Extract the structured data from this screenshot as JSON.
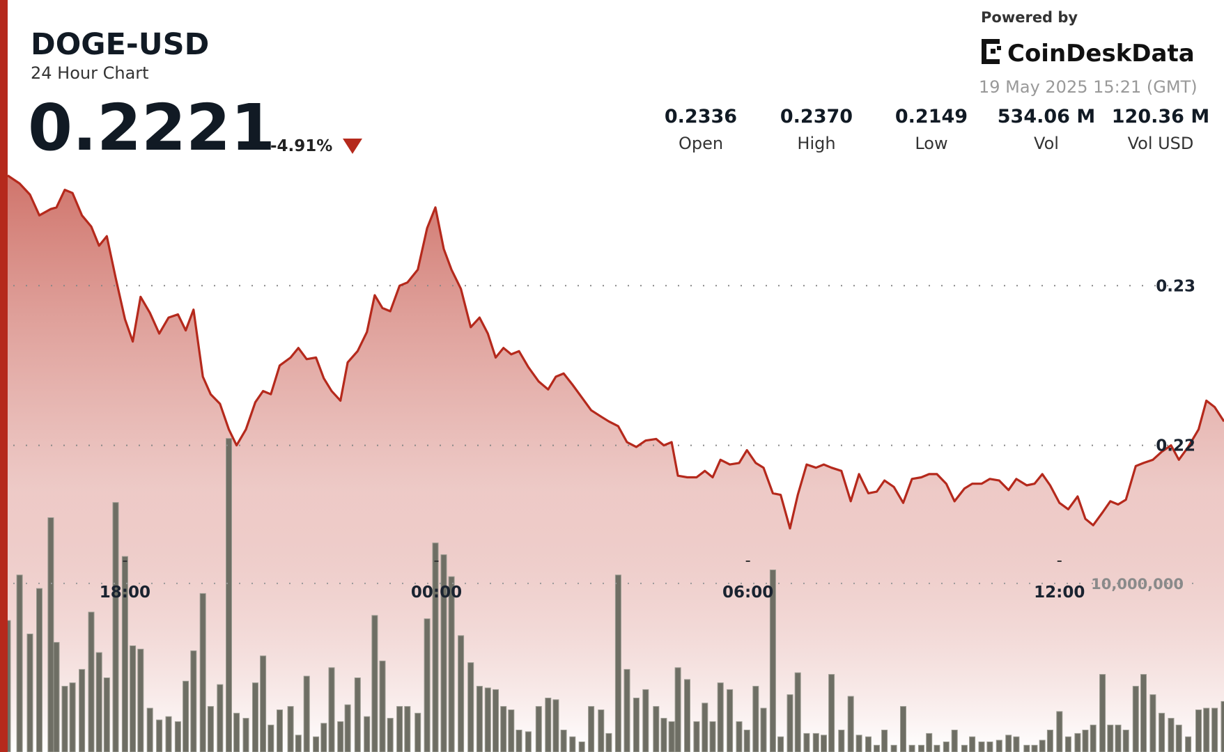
{
  "header": {
    "symbol": "DOGE-USD",
    "subtitle": "24 Hour Chart",
    "price": "0.2221",
    "change": "-4.91%"
  },
  "stats": [
    {
      "value": "0.2336",
      "label": "Open"
    },
    {
      "value": "0.2370",
      "label": "High"
    },
    {
      "value": "0.2149",
      "label": "Low"
    },
    {
      "value": "534.06 M",
      "label": "Vol"
    },
    {
      "value": "120.36 M",
      "label": "Vol USD"
    }
  ],
  "brand": {
    "powered": "Powered by",
    "name": "CoinDeskData",
    "timestamp": "19 May 2025 15:21 (GMT)"
  },
  "chart_data": {
    "type": "combo",
    "x": [
      15.74,
      15.97,
      16.17,
      16.35,
      16.57,
      16.68,
      16.84,
      16.99,
      17.17,
      17.35,
      17.5,
      17.65,
      17.82,
      18,
      18.15,
      18.3,
      18.48,
      18.66,
      18.84,
      19.02,
      19.17,
      19.32,
      19.5,
      19.65,
      19.83,
      20,
      20.15,
      20.33,
      20.51,
      20.66,
      20.81,
      20.98,
      21.19,
      21.34,
      21.5,
      21.68,
      21.83,
      21.98,
      22.15,
      22.29,
      22.48,
      22.66,
      22.81,
      22.96,
      23.11,
      23.29,
      23.44,
      23.64,
      23.82,
      23.98,
      24.14,
      24.29,
      24.47,
      24.66,
      24.83,
      24.99,
      25.14,
      25.29,
      25.44,
      25.59,
      25.77,
      25.97,
      26.15,
      26.3,
      26.45,
      26.62,
      26.8,
      26.98,
      27.17,
      27.32,
      27.5,
      27.67,
      27.85,
      28.03,
      28.23,
      28.38,
      28.53,
      28.65,
      28.83,
      29.01,
      29.17,
      29.32,
      29.47,
      29.65,
      29.83,
      29.98,
      30.15,
      30.3,
      30.48,
      30.63,
      30.81,
      30.96,
      31.13,
      31.31,
      31.46,
      31.61,
      31.8,
      31.98,
      32.14,
      32.32,
      32.48,
      32.63,
      32.81,
      32.99,
      33.16,
      33.34,
      33.49,
      33.64,
      33.82,
      33.98,
      34.17,
      34.32,
      34.5,
      34.66,
      34.84,
      35.02,
      35.17,
      35.37,
      35.52,
      35.67,
      35.82,
      36,
      36.17,
      36.35,
      36.5,
      36.65,
      36.83,
      36.98,
      37.13,
      37.28,
      37.47,
      37.62,
      37.8,
      37.97,
      38.15,
      38.3,
      38.48,
      38.68,
      38.83,
      38.99,
      39.17
    ],
    "series": [
      {
        "type": "area",
        "color": "#b5291c",
        "values": [
          0.2369,
          0.2364,
          0.2357,
          0.2344,
          0.2348,
          0.2349,
          0.236,
          0.2358,
          0.2344,
          0.2337,
          0.2325,
          0.2331,
          0.2305,
          0.2279,
          0.2265,
          0.2293,
          0.2283,
          0.227,
          0.228,
          0.2282,
          0.2272,
          0.2285,
          0.2243,
          0.2232,
          0.2226,
          0.221,
          0.22,
          0.221,
          0.2227,
          0.2234,
          0.2232,
          0.225,
          0.2255,
          0.2261,
          0.2254,
          0.2255,
          0.2242,
          0.2234,
          0.2228,
          0.2252,
          0.2259,
          0.2271,
          0.2294,
          0.2286,
          0.2284,
          0.23,
          0.2302,
          0.231,
          0.2336,
          0.2349,
          0.2323,
          0.231,
          0.2298,
          0.2274,
          0.228,
          0.227,
          0.2255,
          0.2261,
          0.2257,
          0.2259,
          0.2249,
          0.224,
          0.2235,
          0.2243,
          0.2245,
          0.2238,
          0.223,
          0.2222,
          0.2218,
          0.2215,
          0.2212,
          0.2202,
          0.2199,
          0.2203,
          0.2204,
          0.22,
          0.2202,
          0.2181,
          0.218,
          0.218,
          0.2184,
          0.218,
          0.2191,
          0.2188,
          0.2189,
          0.2197,
          0.2189,
          0.2186,
          0.217,
          0.2169,
          0.2148,
          0.2169,
          0.2188,
          0.2186,
          0.2188,
          0.2186,
          0.2184,
          0.2165,
          0.2182,
          0.217,
          0.2171,
          0.2178,
          0.2174,
          0.2164,
          0.2179,
          0.218,
          0.2182,
          0.2182,
          0.2176,
          0.2165,
          0.2173,
          0.2176,
          0.2176,
          0.2179,
          0.2178,
          0.2172,
          0.2179,
          0.2175,
          0.2176,
          0.2182,
          0.2175,
          0.2164,
          0.216,
          0.2168,
          0.2154,
          0.215,
          0.2158,
          0.2165,
          0.2163,
          0.2166,
          0.2187,
          0.2189,
          0.2191,
          0.2196,
          0.22,
          0.2191,
          0.2199,
          0.221,
          0.2228,
          0.2224,
          0.2215
        ]
      },
      {
        "type": "bar",
        "axis": "y2",
        "color": "#6e6e64",
        "values": [
          7800000,
          10500000,
          7000000,
          9700000,
          13900000,
          6500000,
          3900000,
          4100000,
          4900000,
          8300000,
          5900000,
          4400000,
          14800000,
          11600000,
          6300000,
          6100000,
          2600000,
          1900000,
          2100000,
          1800000,
          4200000,
          6000000,
          9400000,
          2700000,
          4000000,
          18600000,
          2300000,
          2000000,
          4100000,
          5700000,
          1600000,
          2500000,
          2700000,
          1000000,
          4500000,
          900000,
          1700000,
          5000000,
          1800000,
          2800000,
          4400000,
          2100000,
          8100000,
          5400000,
          2000000,
          2700000,
          2700000,
          2300000,
          7900000,
          12400000,
          11700000,
          10400000,
          6900000,
          5300000,
          3900000,
          3800000,
          3700000,
          2700000,
          2500000,
          1300000,
          1200000,
          2700000,
          3200000,
          3100000,
          1300000,
          900000,
          600000,
          2700000,
          2500000,
          1100000,
          10500000,
          4900000,
          3200000,
          3700000,
          2700000,
          2000000,
          1800000,
          5000000,
          4300000,
          1800000,
          2900000,
          1800000,
          4100000,
          3700000,
          1800000,
          1300000,
          3900000,
          2600000,
          10800000,
          900000,
          3400000,
          4700000,
          1100000,
          1100000,
          1000000,
          4600000,
          1300000,
          3300000,
          1000000,
          900000,
          400000,
          1300000,
          400000,
          2700000,
          400000,
          400000,
          1100000,
          400000,
          600000,
          1300000,
          400000,
          900000,
          600000,
          600000,
          700000,
          1000000,
          900000,
          400000,
          400000,
          700000,
          1300000,
          2400000,
          900000,
          1100000,
          1300000,
          1600000,
          4600000,
          1600000,
          1600000,
          1300000,
          3900000,
          4600000,
          3400000,
          2300000,
          2000000,
          1600000,
          900000,
          2500000,
          2600000,
          2600000,
          3000000
        ]
      }
    ],
    "xlim": [
      15.74,
      39.17
    ],
    "xticks": [
      {
        "value": 18,
        "label": "18:00"
      },
      {
        "value": 24,
        "label": "00:00"
      },
      {
        "value": 30,
        "label": "06:00"
      },
      {
        "value": 36,
        "label": "12:00"
      }
    ],
    "ylim": [
      0.2008,
      0.2369
    ],
    "yticks": [
      0.22,
      0.23
    ],
    "y2lim": [
      0,
      34200000
    ],
    "y2ticks": [
      {
        "value": 10000000,
        "label": "10,000,000"
      }
    ],
    "grid": true
  }
}
